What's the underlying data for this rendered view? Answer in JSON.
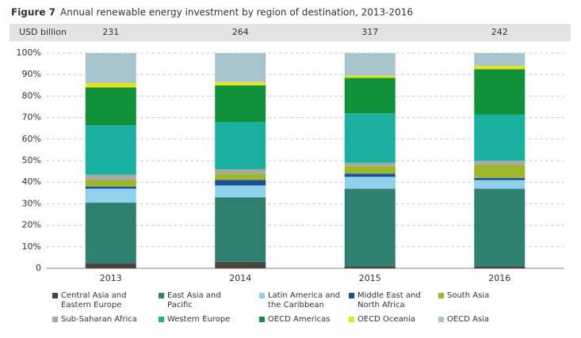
{
  "chart_data": {
    "type": "stacked-bar-100",
    "figure_label": "Figure 7",
    "title": "Annual renewable energy investment by region of destination, 2013-2016",
    "header_label": "USD billion",
    "totals": [
      231,
      264,
      317,
      242
    ],
    "categories": [
      "2013",
      "2014",
      "2015",
      "2016"
    ],
    "ylim": [
      0,
      100
    ],
    "yticks": [
      {
        "value": 0,
        "label": "0"
      },
      {
        "value": 10,
        "label": "10%"
      },
      {
        "value": 20,
        "label": "20%"
      },
      {
        "value": 30,
        "label": "30%"
      },
      {
        "value": 40,
        "label": "40%"
      },
      {
        "value": 50,
        "label": "50%"
      },
      {
        "value": 60,
        "label": "60%"
      },
      {
        "value": 70,
        "label": "70%"
      },
      {
        "value": 80,
        "label": "80%"
      },
      {
        "value": 90,
        "label": "90%"
      },
      {
        "value": 100,
        "label": "100%"
      }
    ],
    "grid": true,
    "series": [
      {
        "name": "Central Asia and Eastern Europe",
        "color": "#4a4440",
        "values": [
          2.5,
          3,
          1,
          1
        ]
      },
      {
        "name": "East Asia and Pacific",
        "color": "#2e8070",
        "values": [
          28,
          30,
          36,
          36
        ]
      },
      {
        "name": "Latin America and the Caribbean",
        "color": "#8fd0ea",
        "values": [
          6.5,
          5.5,
          5.5,
          4
        ]
      },
      {
        "name": "Middle East and North Africa",
        "color": "#1a4e9a",
        "values": [
          1,
          2.5,
          1.5,
          1
        ]
      },
      {
        "name": "South Asia",
        "color": "#9cb82a",
        "values": [
          3,
          3,
          3.5,
          6
        ]
      },
      {
        "name": "Sub-Saharan Africa",
        "color": "#a8a8a8",
        "values": [
          2.5,
          2,
          1.5,
          2
        ]
      },
      {
        "name": "Western Europe",
        "color": "#1ab0a0",
        "values": [
          23,
          22,
          23,
          21.5
        ]
      },
      {
        "name": "OECD Americas",
        "color": "#109038",
        "values": [
          17.5,
          17,
          16.5,
          21
        ]
      },
      {
        "name": "OECD Oceania",
        "color": "#e5e514",
        "values": [
          2,
          1.5,
          1,
          1.5
        ]
      },
      {
        "name": "OECD Asia",
        "color": "#a8c4cc",
        "values": [
          14,
          13.5,
          10.5,
          6
        ]
      }
    ]
  }
}
